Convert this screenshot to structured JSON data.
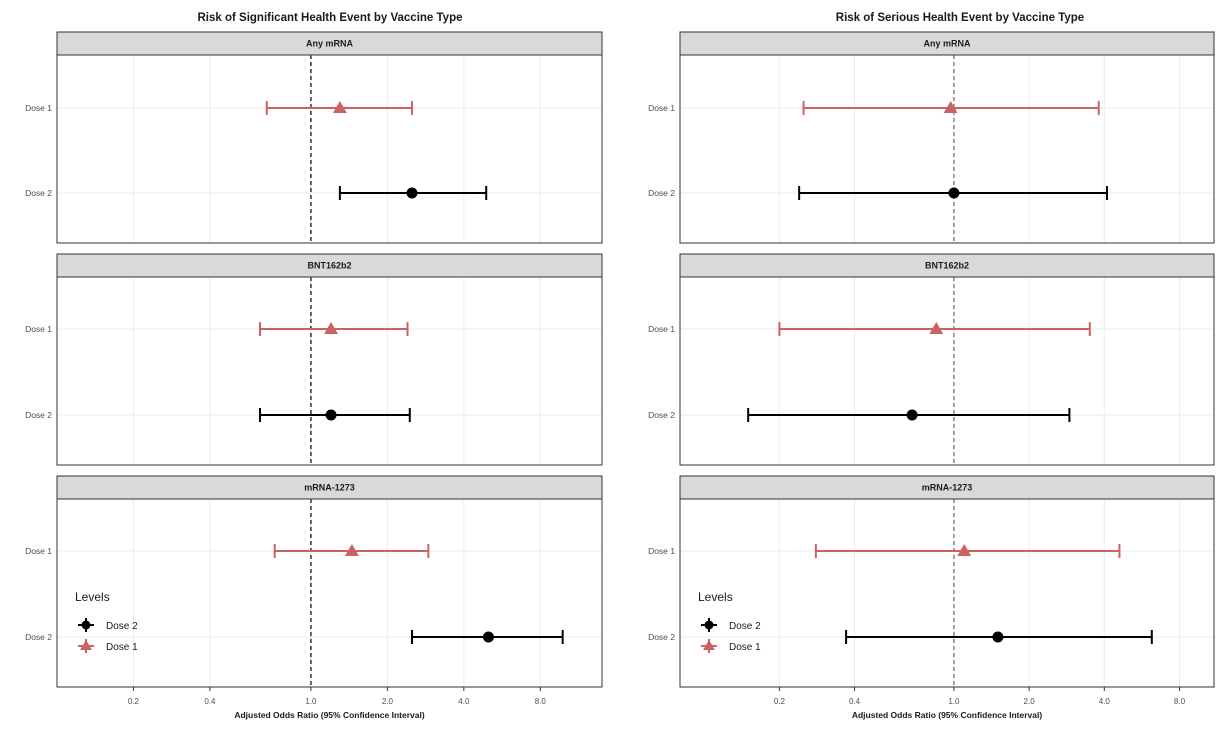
{
  "chart_data": [
    {
      "type": "forest",
      "title": "Risk of Significant Health Event by Vaccine Type",
      "xlabel": "Adjusted Odds Ratio (95% Confidence Interval)",
      "x_scale": "log",
      "xlim": [
        0.1,
        14
      ],
      "xticks": [
        {
          "value": 0.2,
          "label": "0.2"
        },
        {
          "value": 0.4,
          "label": "0.4"
        },
        {
          "value": 1.0,
          "label": "1.0"
        },
        {
          "value": 2.0,
          "label": "2.0"
        },
        {
          "value": 4.0,
          "label": "4.0"
        },
        {
          "value": 8.0,
          "label": "8.0"
        }
      ],
      "reference_line": 1.0,
      "reference_color": "#000000",
      "grid": true,
      "panels": [
        {
          "label": "Any mRNA",
          "rows": [
            {
              "label": "Dose 1",
              "level": "Dose 1",
              "or": 1.3,
              "lo": 0.67,
              "hi": 2.5
            },
            {
              "label": "Dose 2",
              "level": "Dose 2",
              "or": 2.5,
              "lo": 1.3,
              "hi": 4.9
            }
          ]
        },
        {
          "label": "BNT162b2",
          "rows": [
            {
              "label": "Dose 1",
              "level": "Dose 1",
              "or": 1.2,
              "lo": 0.63,
              "hi": 2.4
            },
            {
              "label": "Dose 2",
              "level": "Dose 2",
              "or": 1.2,
              "lo": 0.63,
              "hi": 2.45
            }
          ]
        },
        {
          "label": "mRNA-1273",
          "rows": [
            {
              "label": "Dose 1",
              "level": "Dose 1",
              "or": 1.45,
              "lo": 0.72,
              "hi": 2.9
            },
            {
              "label": "Dose 2",
              "level": "Dose 2",
              "or": 5.0,
              "lo": 2.5,
              "hi": 9.8
            }
          ]
        }
      ],
      "legend": {
        "title": "Levels",
        "position": "bottom-left",
        "entries": [
          {
            "label": "Dose 2",
            "color": "#000000",
            "shape": "circle"
          },
          {
            "label": "Dose 1",
            "color": "#cd6262",
            "shape": "triangle"
          }
        ]
      }
    },
    {
      "type": "forest",
      "title": "Risk of Serious Health Event by Vaccine Type",
      "xlabel": "Adjusted Odds Ratio (95% Confidence Interval)",
      "x_scale": "log",
      "xlim": [
        0.08,
        11
      ],
      "xticks": [
        {
          "value": 0.2,
          "label": "0.2"
        },
        {
          "value": 0.4,
          "label": "0.4"
        },
        {
          "value": 1.0,
          "label": "1.0"
        },
        {
          "value": 2.0,
          "label": "2.0"
        },
        {
          "value": 4.0,
          "label": "4.0"
        },
        {
          "value": 8.0,
          "label": "8.0"
        }
      ],
      "reference_line": 1.0,
      "reference_color": "#666666",
      "grid": true,
      "panels": [
        {
          "label": "Any mRNA",
          "rows": [
            {
              "label": "Dose 1",
              "level": "Dose 1",
              "or": 0.97,
              "lo": 0.25,
              "hi": 3.8
            },
            {
              "label": "Dose 2",
              "level": "Dose 2",
              "or": 1.0,
              "lo": 0.24,
              "hi": 4.1
            }
          ]
        },
        {
          "label": "BNT162b2",
          "rows": [
            {
              "label": "Dose 1",
              "level": "Dose 1",
              "or": 0.85,
              "lo": 0.2,
              "hi": 3.5
            },
            {
              "label": "Dose 2",
              "level": "Dose 2",
              "or": 0.68,
              "lo": 0.15,
              "hi": 2.9
            }
          ]
        },
        {
          "label": "mRNA-1273",
          "rows": [
            {
              "label": "Dose 1",
              "level": "Dose 1",
              "or": 1.1,
              "lo": 0.28,
              "hi": 4.6
            },
            {
              "label": "Dose 2",
              "level": "Dose 2",
              "or": 1.5,
              "lo": 0.37,
              "hi": 6.2
            }
          ]
        }
      ],
      "legend": {
        "title": "Levels",
        "position": "bottom-left",
        "entries": [
          {
            "label": "Dose 2",
            "color": "#000000",
            "shape": "circle"
          },
          {
            "label": "Dose 1",
            "color": "#cd6262",
            "shape": "triangle"
          }
        ]
      }
    }
  ],
  "colors": {
    "dose1": "#cd6262",
    "dose2": "#000000",
    "strip_fill": "#d9d9d9",
    "panel_border": "#333333",
    "grid": "#ebebeb"
  }
}
